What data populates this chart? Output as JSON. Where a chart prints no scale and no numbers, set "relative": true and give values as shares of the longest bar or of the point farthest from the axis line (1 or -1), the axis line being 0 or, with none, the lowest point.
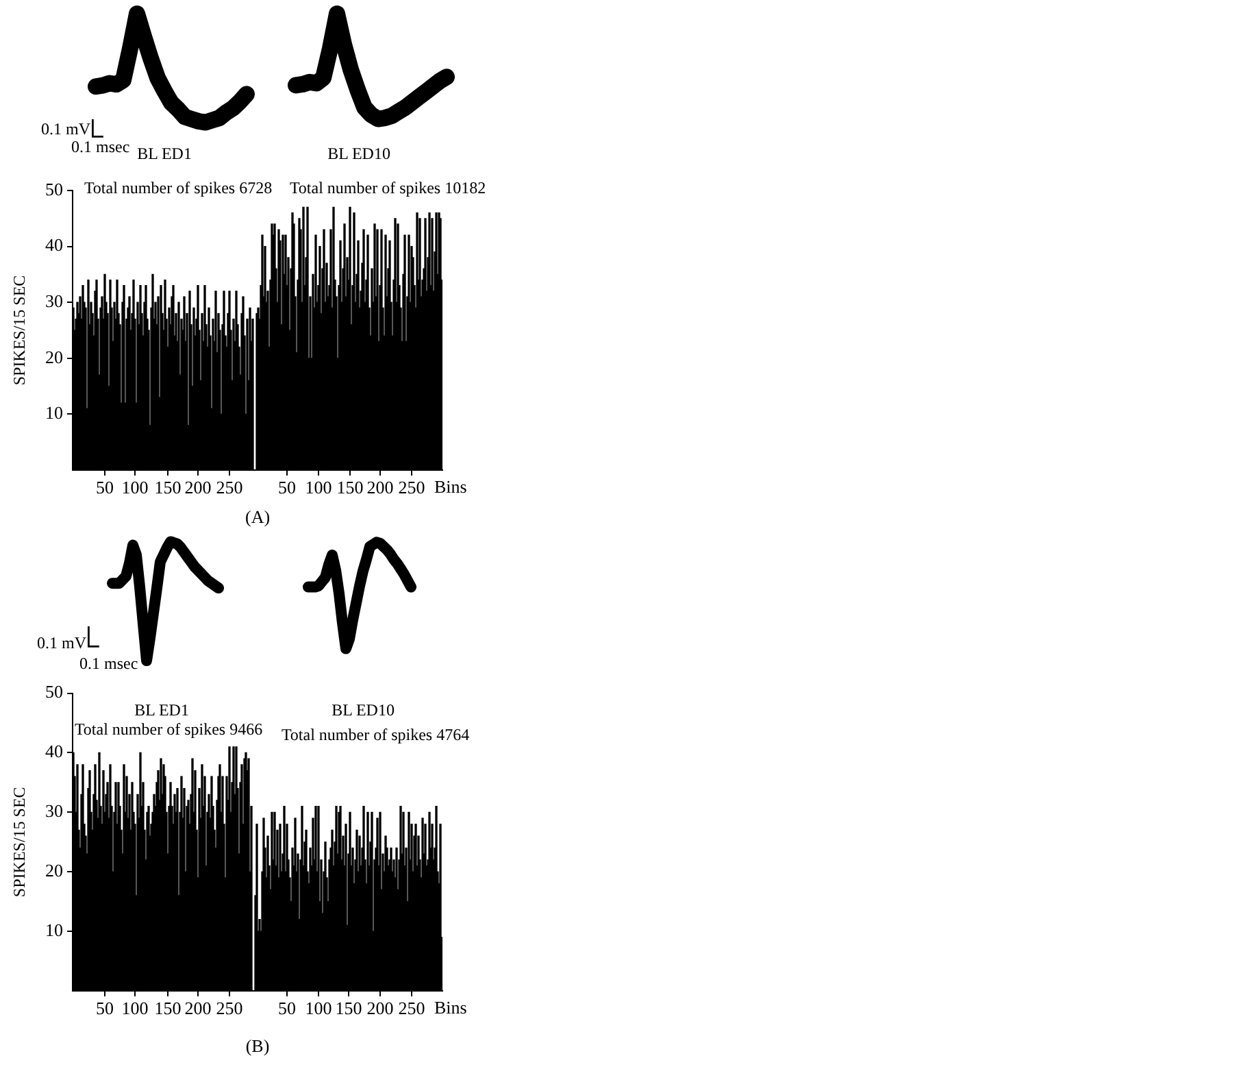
{
  "chart_data": [
    {
      "type": "line",
      "relative": true,
      "title": "BL ED1",
      "annotations": [
        "0.1 mV",
        "0.1 msec"
      ],
      "categories": [
        null,
        null,
        null,
        null,
        null,
        null,
        null,
        null,
        null,
        null,
        null,
        null,
        null,
        null,
        null,
        null,
        null,
        null,
        null,
        null,
        null,
        null,
        null
      ],
      "values": [
        0.33,
        0.34,
        0.36,
        0.35,
        0.39,
        0.68,
        1,
        0.79,
        0.59,
        0.41,
        0.29,
        0.18,
        0.12,
        0.05,
        0.03,
        0.01,
        0,
        0.02,
        0.04,
        0.09,
        0.13,
        0.19,
        0.26
      ],
      "color": "#000000"
    },
    {
      "type": "line",
      "relative": true,
      "title": "BL ED10",
      "categories": [
        null,
        null,
        null,
        null,
        null,
        null,
        null,
        null,
        null,
        null,
        null,
        null,
        null,
        null,
        null,
        null,
        null,
        null,
        null,
        null,
        null,
        null,
        null
      ],
      "values": [
        0.32,
        0.33,
        0.35,
        0.34,
        0.39,
        0.67,
        1,
        0.71,
        0.47,
        0.28,
        0.11,
        0.04,
        0,
        0.01,
        0.03,
        0.07,
        0.11,
        0.16,
        0.21,
        0.26,
        0.31,
        0.36,
        0.4
      ],
      "color": "#000000"
    },
    {
      "type": "bar",
      "title": "(A)",
      "xlabel": "Bins",
      "ylabel": "SPIKES/15 SEC",
      "annotations": [
        "Total number of spikes 6728",
        "Total number of spikes 10182"
      ],
      "categories": [
        null,
        null,
        null,
        null,
        null,
        null,
        null,
        null,
        null,
        null,
        null,
        null,
        null,
        null,
        null,
        null,
        null,
        null,
        null,
        null,
        null,
        null,
        null,
        "50",
        null,
        null,
        null,
        null,
        null,
        null,
        null,
        null,
        null,
        null,
        null,
        null,
        null,
        null,
        null,
        null,
        null,
        null,
        null,
        null,
        null,
        "100",
        null,
        null,
        null,
        null,
        null,
        null,
        null,
        null,
        null,
        null,
        null,
        null,
        null,
        null,
        null,
        null,
        null,
        null,
        null,
        null,
        null,
        null,
        null,
        "150",
        null,
        null,
        null,
        null,
        null,
        null,
        null,
        null,
        null,
        null,
        null,
        null,
        null,
        null,
        null,
        null,
        null,
        null,
        null,
        null,
        null,
        "200",
        null,
        null,
        null,
        null,
        null,
        null,
        null,
        null,
        null,
        null,
        null,
        null,
        null,
        null,
        null,
        null,
        null,
        null,
        null,
        null,
        null,
        null,
        "250",
        null,
        null,
        null,
        null,
        null,
        null,
        null,
        null,
        null,
        null,
        null,
        null,
        null,
        null,
        null,
        null,
        null,
        null,
        null,
        null,
        null,
        null,
        null,
        null,
        null,
        null,
        null,
        null,
        null,
        null,
        null,
        null,
        null,
        null,
        null,
        null,
        null,
        null,
        null,
        null,
        null,
        "50",
        null,
        null,
        null,
        null,
        null,
        null,
        null,
        null,
        null,
        null,
        null,
        null,
        null,
        null,
        null,
        null,
        null,
        null,
        null,
        null,
        null,
        null,
        "100",
        null,
        null,
        null,
        null,
        null,
        null,
        null,
        null,
        null,
        null,
        null,
        null,
        null,
        null,
        null,
        null,
        null,
        null,
        null,
        null,
        null,
        null,
        "150",
        null,
        null,
        null,
        null,
        null,
        null,
        null,
        null,
        null,
        null,
        null,
        null,
        null,
        null,
        null,
        null,
        null,
        null,
        null,
        null,
        null,
        "200",
        null,
        null,
        null,
        null,
        null,
        null,
        null,
        null,
        null,
        null,
        null,
        null,
        null,
        null,
        null,
        null,
        null,
        null,
        null,
        null,
        null,
        null,
        "250",
        null,
        null,
        null,
        null,
        null,
        null,
        null,
        null,
        null,
        null,
        null,
        null,
        null,
        null,
        null,
        null,
        null,
        null,
        null,
        null,
        null,
        null
      ],
      "values": [
        29,
        25,
        27,
        30,
        28,
        31,
        27,
        33,
        30,
        29,
        11,
        34,
        26,
        30,
        28,
        24,
        32,
        34,
        27,
        17,
        29,
        31,
        27,
        35,
        30,
        28,
        15,
        34,
        29,
        23,
        30,
        27,
        34,
        28,
        26,
        12,
        30,
        33,
        12,
        27,
        29,
        31,
        25,
        28,
        34,
        27,
        12,
        30,
        26,
        33,
        28,
        24,
        30,
        33,
        27,
        25,
        8,
        29,
        35,
        27,
        30,
        26,
        31,
        13,
        33,
        28,
        25,
        34,
        27,
        22,
        29,
        26,
        31,
        33,
        24,
        28,
        23,
        30,
        17,
        27,
        25,
        31,
        23,
        28,
        8,
        32,
        26,
        15,
        29,
        24,
        27,
        33,
        25,
        16,
        28,
        23,
        33,
        26,
        22,
        29,
        24,
        11,
        27,
        23,
        32,
        21,
        28,
        25,
        10,
        26,
        32,
        24,
        22,
        28,
        32,
        25,
        16,
        27,
        23,
        32,
        26,
        22,
        17,
        28,
        31,
        24,
        10,
        27,
        16,
        29,
        23,
        27,
        null,
        null,
        28,
        29,
        27,
        33,
        42,
        31,
        40,
        30,
        32,
        22,
        34,
        44,
        42,
        44,
        36,
        30,
        43,
        41,
        26,
        42,
        35,
        42,
        33,
        38,
        25,
        36,
        46,
        44,
        31,
        21,
        34,
        45,
        43,
        30,
        47,
        33,
        38,
        47,
        20,
        31,
        20,
        35,
        29,
        42,
        30,
        33,
        40,
        28,
        36,
        43,
        30,
        37,
        31,
        33,
        43,
        29,
        47,
        34,
        31,
        20,
        33,
        41,
        30,
        36,
        44,
        31,
        38,
        34,
        47,
        26,
        33,
        46,
        30,
        35,
        41,
        29,
        32,
        37,
        43,
        30,
        34,
        42,
        29,
        24,
        36,
        30,
        44,
        31,
        43,
        23,
        33,
        43,
        29,
        24,
        42,
        31,
        36,
        41,
        30,
        24,
        34,
        45,
        30,
        44,
        33,
        29,
        23,
        35,
        42,
        23,
        31,
        42,
        30,
        40,
        38,
        33,
        29,
        46,
        34,
        45,
        31,
        34,
        36,
        45,
        32,
        38,
        46,
        33,
        45,
        32,
        39,
        46,
        35,
        46,
        45,
        34
      ],
      "color": "#000000",
      "ylim": [
        0,
        50
      ],
      "yticks": [
        10,
        20,
        30,
        40,
        50
      ]
    },
    {
      "type": "line",
      "relative": true,
      "annotations": [
        "0.1 mV",
        "0.1 msec"
      ],
      "categories": [
        null,
        null,
        null,
        null,
        null,
        null,
        null,
        null,
        null,
        null,
        null,
        null,
        null,
        null,
        null,
        null,
        null,
        null,
        null,
        null,
        null,
        null,
        null,
        null,
        null,
        null,
        null,
        null,
        null,
        null,
        null,
        null
      ],
      "values": [
        0.65,
        0.65,
        0.65,
        0.68,
        0.71,
        0.82,
        0.97,
        0.89,
        0.62,
        0.31,
        0,
        0.19,
        0.4,
        0.61,
        0.83,
        0.89,
        0.95,
        1,
        0.99,
        0.98,
        0.95,
        0.91,
        0.87,
        0.83,
        0.79,
        0.76,
        0.73,
        0.7,
        0.67,
        0.65,
        0.63,
        0.61
      ],
      "color": "#000000"
    },
    {
      "type": "line",
      "relative": true,
      "categories": [
        null,
        null,
        null,
        null,
        null,
        null,
        null,
        null,
        null,
        null,
        null,
        null,
        null,
        null,
        null,
        null,
        null,
        null,
        null,
        null,
        null,
        null,
        null,
        null,
        null,
        null,
        null,
        null,
        null,
        null,
        null
      ],
      "values": [
        0.58,
        0.58,
        0.58,
        0.59,
        0.63,
        0.67,
        0.79,
        0.88,
        0.74,
        0.52,
        0.24,
        0,
        0.09,
        0.27,
        0.43,
        0.59,
        0.73,
        0.84,
        0.96,
        0.98,
        1,
        0.99,
        0.96,
        0.93,
        0.89,
        0.84,
        0.8,
        0.75,
        0.7,
        0.64,
        0.58
      ],
      "color": "#000000"
    },
    {
      "type": "bar",
      "title": "(B)",
      "xlabel": "Bins",
      "ylabel": "SPIKES/15 SEC",
      "annotations": [
        "BL ED1",
        "BL ED10",
        "Total number of spikes 9466",
        "Total number of spikes 4764"
      ],
      "categories": [
        null,
        null,
        null,
        null,
        null,
        null,
        null,
        null,
        null,
        null,
        null,
        null,
        null,
        null,
        null,
        null,
        null,
        null,
        null,
        null,
        null,
        null,
        null,
        "50",
        null,
        null,
        null,
        null,
        null,
        null,
        null,
        null,
        null,
        null,
        null,
        null,
        null,
        null,
        null,
        null,
        null,
        null,
        null,
        null,
        null,
        "100",
        null,
        null,
        null,
        null,
        null,
        null,
        null,
        null,
        null,
        null,
        null,
        null,
        null,
        null,
        null,
        null,
        null,
        null,
        null,
        null,
        null,
        null,
        null,
        "150",
        null,
        null,
        null,
        null,
        null,
        null,
        null,
        null,
        null,
        null,
        null,
        null,
        null,
        null,
        null,
        null,
        null,
        null,
        null,
        null,
        null,
        "200",
        null,
        null,
        null,
        null,
        null,
        null,
        null,
        null,
        null,
        null,
        null,
        null,
        null,
        null,
        null,
        null,
        null,
        null,
        null,
        null,
        null,
        null,
        "250",
        null,
        null,
        null,
        null,
        null,
        null,
        null,
        null,
        null,
        null,
        null,
        null,
        null,
        null,
        null,
        null,
        null,
        null,
        null,
        null,
        null,
        null,
        null,
        null,
        null,
        null,
        null,
        null,
        null,
        null,
        null,
        null,
        null,
        null,
        null,
        null,
        null,
        null,
        null,
        null,
        null,
        "50",
        null,
        null,
        null,
        null,
        null,
        null,
        null,
        null,
        null,
        null,
        null,
        null,
        null,
        null,
        null,
        null,
        null,
        null,
        null,
        null,
        null,
        null,
        "100",
        null,
        null,
        null,
        null,
        null,
        null,
        null,
        null,
        null,
        null,
        null,
        null,
        null,
        null,
        null,
        null,
        null,
        null,
        null,
        null,
        null,
        "150",
        null,
        null,
        null,
        null,
        null,
        null,
        null,
        null,
        null,
        null,
        null,
        null,
        null,
        null,
        null,
        null,
        null,
        null,
        null,
        null,
        null,
        null,
        "200",
        null,
        null,
        null,
        null,
        null,
        null,
        null,
        null,
        null,
        null,
        null,
        null,
        null,
        null,
        null,
        null,
        null,
        null,
        null,
        null,
        null,
        null,
        "250",
        null,
        null,
        null,
        null,
        null,
        null,
        null,
        null,
        null,
        null,
        null,
        null,
        null,
        null,
        null,
        null,
        null,
        null,
        null,
        null,
        null,
        null
      ],
      "values": [
        40,
        36,
        30,
        38,
        27,
        24,
        33,
        38,
        28,
        26,
        23,
        34,
        37,
        30,
        27,
        33,
        38,
        32,
        29,
        40,
        31,
        28,
        37,
        30,
        33,
        35,
        29,
        38,
        31,
        20,
        30,
        35,
        28,
        35,
        31,
        27,
        23,
        38,
        30,
        36,
        29,
        33,
        27,
        35,
        30,
        28,
        16,
        33,
        29,
        40,
        31,
        35,
        27,
        22,
        30,
        31,
        26,
        28,
        30,
        33,
        31,
        35,
        37,
        32,
        39,
        33,
        38,
        36,
        30,
        23,
        31,
        35,
        31,
        28,
        33,
        30,
        34,
        16,
        30,
        36,
        29,
        34,
        20,
        31,
        32,
        28,
        33,
        39,
        30,
        37,
        27,
        19,
        34,
        29,
        38,
        31,
        36,
        21,
        30,
        33,
        29,
        36,
        31,
        27,
        24,
        32,
        36,
        38,
        30,
        36,
        28,
        19,
        36,
        32,
        41,
        30,
        35,
        41,
        33,
        41,
        34,
        23,
        35,
        38,
        28,
        39,
        40,
        37,
        39,
        20,
        31,
        null,
        null,
        16,
        28,
        10,
        12,
        10,
        20,
        29,
        24,
        19,
        26,
        21,
        17,
        30,
        22,
        30,
        21,
        27,
        19,
        28,
        20,
        23,
        31,
        20,
        28,
        22,
        19,
        15,
        24,
        21,
        29,
        20,
        23,
        12,
        22,
        31,
        21,
        25,
        27,
        20,
        18,
        24,
        21,
        29,
        22,
        31,
        20,
        31,
        15,
        22,
        13,
        20,
        25,
        19,
        15,
        22,
        24,
        27,
        21,
        25,
        31,
        23,
        30,
        31,
        22,
        26,
        21,
        28,
        11,
        23,
        30,
        21,
        24,
        18,
        22,
        27,
        20,
        26,
        21,
        24,
        31,
        22,
        18,
        30,
        21,
        25,
        30,
        10,
        22,
        24,
        29,
        21,
        30,
        17,
        23,
        20,
        26,
        24,
        21,
        22,
        24,
        20,
        22,
        19,
        24,
        17,
        22,
        31,
        23,
        30,
        21,
        24,
        15,
        30,
        22,
        28,
        20,
        26,
        28,
        21,
        26,
        22,
        19,
        29,
        23,
        28,
        21,
        22,
        30,
        24,
        28,
        22,
        24,
        31,
        20,
        18,
        28,
        9
      ],
      "color": "#000000",
      "ylim": [
        0,
        50
      ],
      "yticks": [
        10,
        20,
        30,
        40,
        50
      ]
    }
  ]
}
